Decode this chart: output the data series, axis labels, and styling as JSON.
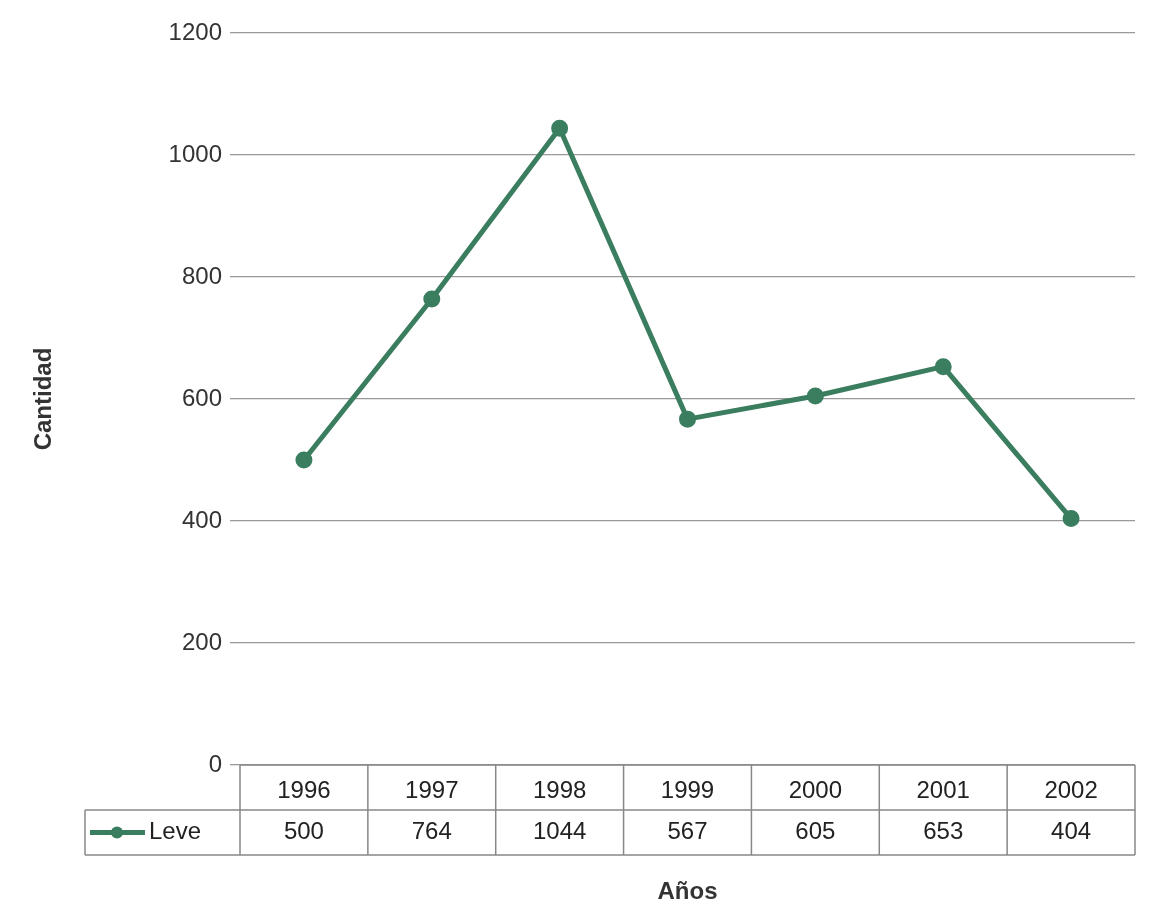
{
  "chart_data": {
    "type": "line",
    "xlabel": "Años",
    "ylabel": "Cantidad",
    "categories": [
      "1996",
      "1997",
      "1998",
      "1999",
      "2000",
      "2001",
      "2002"
    ],
    "series": [
      {
        "name": "Leve",
        "color": "#3a7d5f",
        "values": [
          500,
          764,
          1044,
          567,
          605,
          653,
          404
        ]
      }
    ],
    "ylim": [
      0,
      1200
    ],
    "yticks": [
      0,
      200,
      400,
      600,
      800,
      1000,
      1200
    ],
    "grid": "y",
    "legend": "bottom",
    "marker": "circle",
    "line_style": "solid",
    "data_labels": true
  }
}
